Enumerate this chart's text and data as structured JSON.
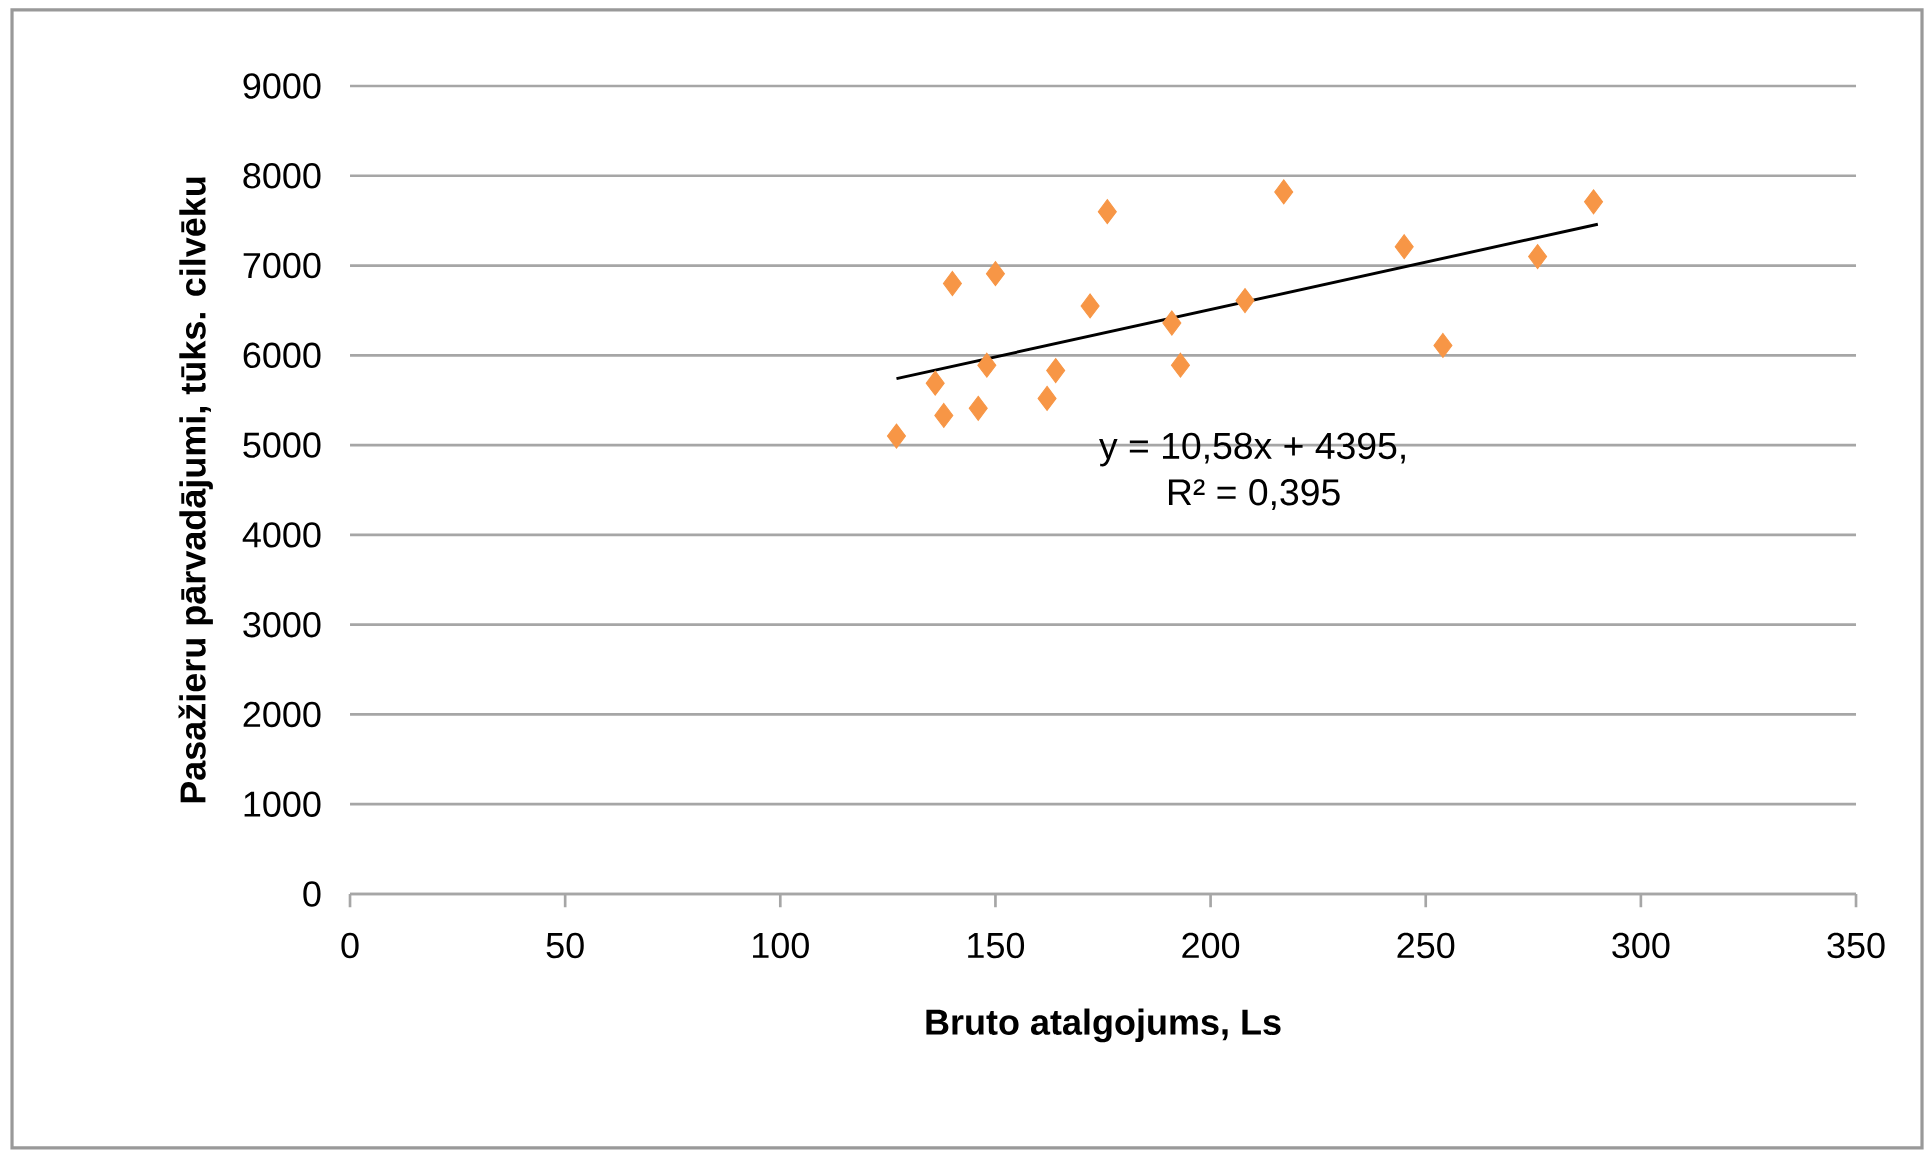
{
  "chart_data": {
    "type": "scatter",
    "xlabel": "Bruto atalgojums, Ls",
    "ylabel": "Pasažieru pārvadājumi, tūks. cilvēku",
    "series": [
      {
        "color": "#f79646",
        "marker": "diamond",
        "x": [
          127,
          140,
          150,
          176,
          172,
          136,
          148,
          138,
          146,
          164,
          162,
          191,
          193,
          208,
          217,
          245,
          276,
          289,
          254
        ],
        "values": [
          5100,
          6800,
          6910,
          7600,
          6550,
          5690,
          5890,
          5330,
          5410,
          5830,
          5520,
          6360,
          5890,
          6610,
          7820,
          7210,
          7100,
          7710,
          6110
        ]
      },
      {
        "type": "line",
        "color": "#000000",
        "marker": "none",
        "line_style": "solid",
        "x": [
          127,
          290
        ],
        "values": [
          5740,
          7460
        ]
      }
    ],
    "annotations": [
      "y = 10,58x + 4395,",
      "R² = 0,395"
    ],
    "xlim": [
      0,
      350
    ],
    "ylim": [
      0,
      9000
    ],
    "xticks": [
      0,
      50,
      100,
      150,
      200,
      250,
      300,
      350
    ],
    "yticks": [
      0,
      1000,
      2000,
      3000,
      4000,
      5000,
      6000,
      7000,
      8000,
      9000
    ],
    "grid": "y"
  }
}
